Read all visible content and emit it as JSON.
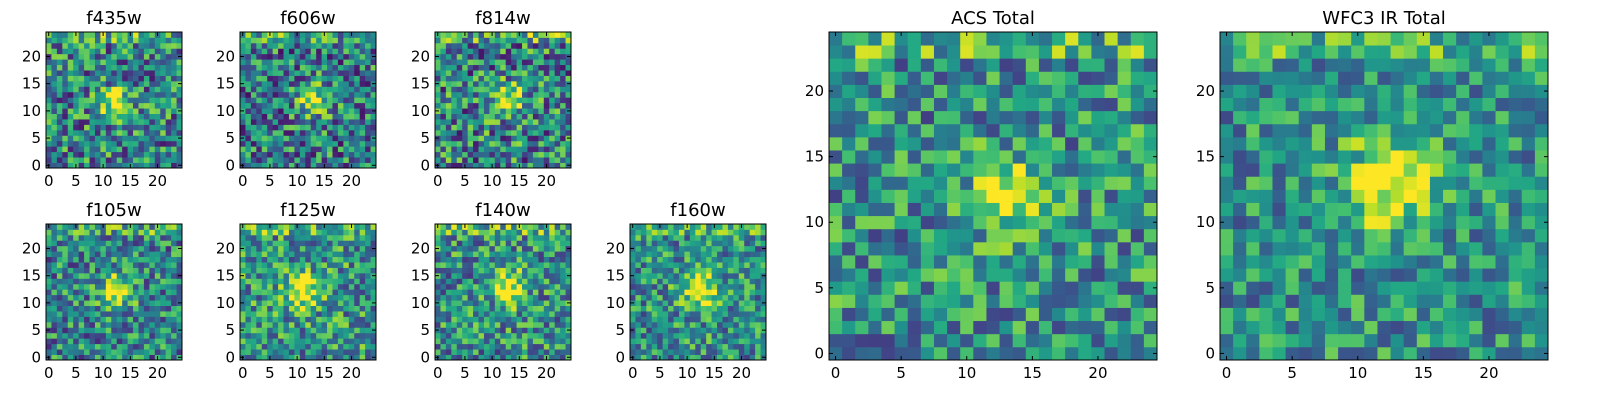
{
  "chart_data": [
    {
      "type": "heatmap",
      "title": "f435w",
      "xlim": [
        0,
        25
      ],
      "ylim": [
        0,
        25
      ],
      "xticks": [
        0,
        5,
        10,
        15,
        20
      ],
      "yticks": [
        0,
        5,
        10,
        15,
        20
      ],
      "grid_size": 25,
      "peak": [
        12.5,
        11.5
      ],
      "peak_sigma": 2.0,
      "noise": 0.38,
      "seed": 11,
      "base": 0.45
    },
    {
      "type": "heatmap",
      "title": "f606w",
      "xlim": [
        0,
        25
      ],
      "ylim": [
        0,
        25
      ],
      "xticks": [
        0,
        5,
        10,
        15,
        20
      ],
      "yticks": [
        0,
        5,
        10,
        15,
        20
      ],
      "grid_size": 25,
      "peak": [
        13,
        12
      ],
      "peak_sigma": 2.0,
      "noise": 0.38,
      "seed": 23,
      "base": 0.42
    },
    {
      "type": "heatmap",
      "title": "f814w",
      "xlim": [
        0,
        25
      ],
      "ylim": [
        0,
        25
      ],
      "xticks": [
        0,
        5,
        10,
        15,
        20
      ],
      "yticks": [
        0,
        5,
        10,
        15,
        20
      ],
      "grid_size": 25,
      "peak": [
        13,
        12
      ],
      "peak_sigma": 2.0,
      "noise": 0.4,
      "seed": 37,
      "base": 0.45
    },
    {
      "type": "heatmap",
      "title": "f105w",
      "xlim": [
        0,
        25
      ],
      "ylim": [
        0,
        25
      ],
      "xticks": [
        0,
        5,
        10,
        15,
        20
      ],
      "yticks": [
        0,
        5,
        10,
        15,
        20
      ],
      "grid_size": 25,
      "peak": [
        12.5,
        12.5
      ],
      "peak_sigma": 2.2,
      "noise": 0.34,
      "seed": 41,
      "base": 0.45
    },
    {
      "type": "heatmap",
      "title": "f125w",
      "xlim": [
        0,
        25
      ],
      "ylim": [
        0,
        25
      ],
      "xticks": [
        0,
        5,
        10,
        15,
        20
      ],
      "yticks": [
        0,
        5,
        10,
        15,
        20
      ],
      "grid_size": 25,
      "peak": [
        11,
        12
      ],
      "peak_sigma": 2.2,
      "noise": 0.34,
      "seed": 53,
      "base": 0.52
    },
    {
      "type": "heatmap",
      "title": "f140w",
      "xlim": [
        0,
        25
      ],
      "ylim": [
        0,
        25
      ],
      "xticks": [
        0,
        5,
        10,
        15,
        20
      ],
      "yticks": [
        0,
        5,
        10,
        15,
        20
      ],
      "grid_size": 25,
      "peak": [
        13,
        13
      ],
      "peak_sigma": 2.2,
      "noise": 0.34,
      "seed": 67,
      "base": 0.5
    },
    {
      "type": "heatmap",
      "title": "f160w",
      "xlim": [
        0,
        25
      ],
      "ylim": [
        0,
        25
      ],
      "xticks": [
        0,
        5,
        10,
        15,
        20
      ],
      "yticks": [
        0,
        5,
        10,
        15,
        20
      ],
      "grid_size": 25,
      "peak": [
        12.5,
        12.5
      ],
      "peak_sigma": 2.4,
      "noise": 0.32,
      "seed": 79,
      "base": 0.5
    },
    {
      "type": "heatmap",
      "title": "ACS Total",
      "xlim": [
        0,
        25
      ],
      "ylim": [
        0,
        25
      ],
      "xticks": [
        0,
        5,
        10,
        15,
        20
      ],
      "yticks": [
        0,
        5,
        10,
        15,
        20
      ],
      "grid_size": 25,
      "peak": [
        13,
        12
      ],
      "peak_sigma": 1.8,
      "noise": 0.32,
      "seed": 97,
      "base": 0.5
    },
    {
      "type": "heatmap",
      "title": "WFC3 IR Total",
      "xlim": [
        0,
        25
      ],
      "ylim": [
        0,
        25
      ],
      "xticks": [
        0,
        5,
        10,
        15,
        20
      ],
      "yticks": [
        0,
        5,
        10,
        15,
        20
      ],
      "grid_size": 25,
      "peak": [
        12.5,
        13
      ],
      "peak_sigma": 2.4,
      "noise": 0.28,
      "seed": 113,
      "base": 0.5
    }
  ],
  "colors": {
    "colormap": "viridis",
    "axis_frame": "#000000",
    "background": "#ffffff"
  }
}
